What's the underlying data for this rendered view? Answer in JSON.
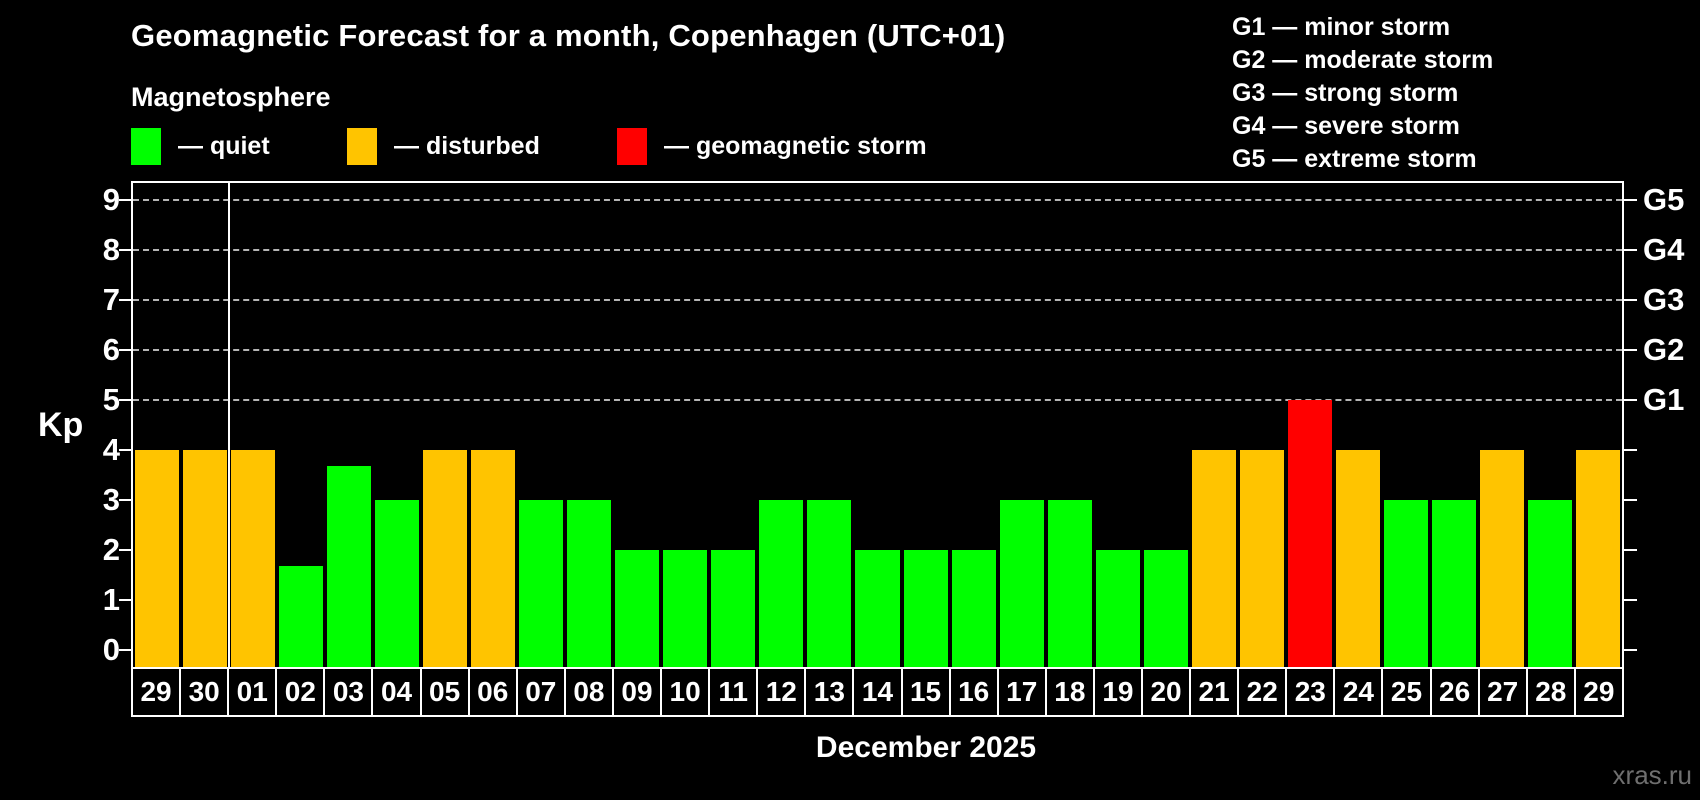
{
  "title": "Geomagnetic Forecast for a month, Copenhagen (UTC+01)",
  "subtitle": "Magnetosphere",
  "legend": {
    "items": [
      {
        "key": "quiet",
        "label": "— quiet",
        "color": "#00ff00"
      },
      {
        "key": "disturbed",
        "label": "— disturbed",
        "color": "#ffc400"
      },
      {
        "key": "storm",
        "label": "— geomagnetic storm",
        "color": "#ff0000"
      }
    ]
  },
  "storm_scale": {
    "lines": [
      "G1 — minor storm",
      "G2 — moderate storm",
      "G3 — strong storm",
      "G4 — severe storm",
      "G5 — extreme storm"
    ]
  },
  "y_axis": {
    "label": "Kp",
    "ticks": [
      0,
      1,
      2,
      3,
      4,
      5,
      6,
      7,
      8,
      9
    ]
  },
  "right_axis": [
    {
      "kp": 5,
      "label": "G1"
    },
    {
      "kp": 6,
      "label": "G2"
    },
    {
      "kp": 7,
      "label": "G3"
    },
    {
      "kp": 8,
      "label": "G4"
    },
    {
      "kp": 9,
      "label": "G5"
    }
  ],
  "x_axis_title": "December 2025",
  "watermark": "xras.ru",
  "colors": {
    "quiet": "#00ff00",
    "disturbed": "#ffc400",
    "storm": "#ff0000",
    "grid": "#b5b5b5"
  },
  "chart_data": {
    "type": "bar",
    "title": "Geomagnetic Forecast for a month, Copenhagen (UTC+01)",
    "subtitle": "Magnetosphere",
    "xlabel": "December 2025",
    "ylabel": "Kp",
    "ylim": [
      0,
      9
    ],
    "grid": "horizontal dashed lines at Kp 5,6,7,8,9 labeled G1-G5 on right axis",
    "legend_position": "top",
    "categories": [
      "29",
      "30",
      "01",
      "02",
      "03",
      "04",
      "05",
      "06",
      "07",
      "08",
      "09",
      "10",
      "11",
      "12",
      "13",
      "14",
      "15",
      "16",
      "17",
      "18",
      "19",
      "20",
      "21",
      "22",
      "23",
      "24",
      "25",
      "26",
      "27",
      "28",
      "29"
    ],
    "values": [
      4,
      4,
      4,
      1.67,
      3.67,
      3,
      4,
      4,
      3,
      3,
      2,
      2,
      2,
      3,
      3,
      2,
      2,
      2,
      3,
      3,
      2,
      2,
      4,
      4,
      5,
      4,
      3,
      3,
      4,
      3,
      4
    ],
    "statuses": [
      "disturbed",
      "disturbed",
      "disturbed",
      "quiet",
      "quiet",
      "quiet",
      "disturbed",
      "disturbed",
      "quiet",
      "quiet",
      "quiet",
      "quiet",
      "quiet",
      "quiet",
      "quiet",
      "quiet",
      "quiet",
      "quiet",
      "quiet",
      "quiet",
      "quiet",
      "quiet",
      "disturbed",
      "disturbed",
      "storm",
      "disturbed",
      "quiet",
      "quiet",
      "disturbed",
      "quiet",
      "disturbed"
    ],
    "gridlines_kp": [
      5,
      6,
      7,
      8,
      9
    ],
    "month_separator_after_index": 1
  }
}
